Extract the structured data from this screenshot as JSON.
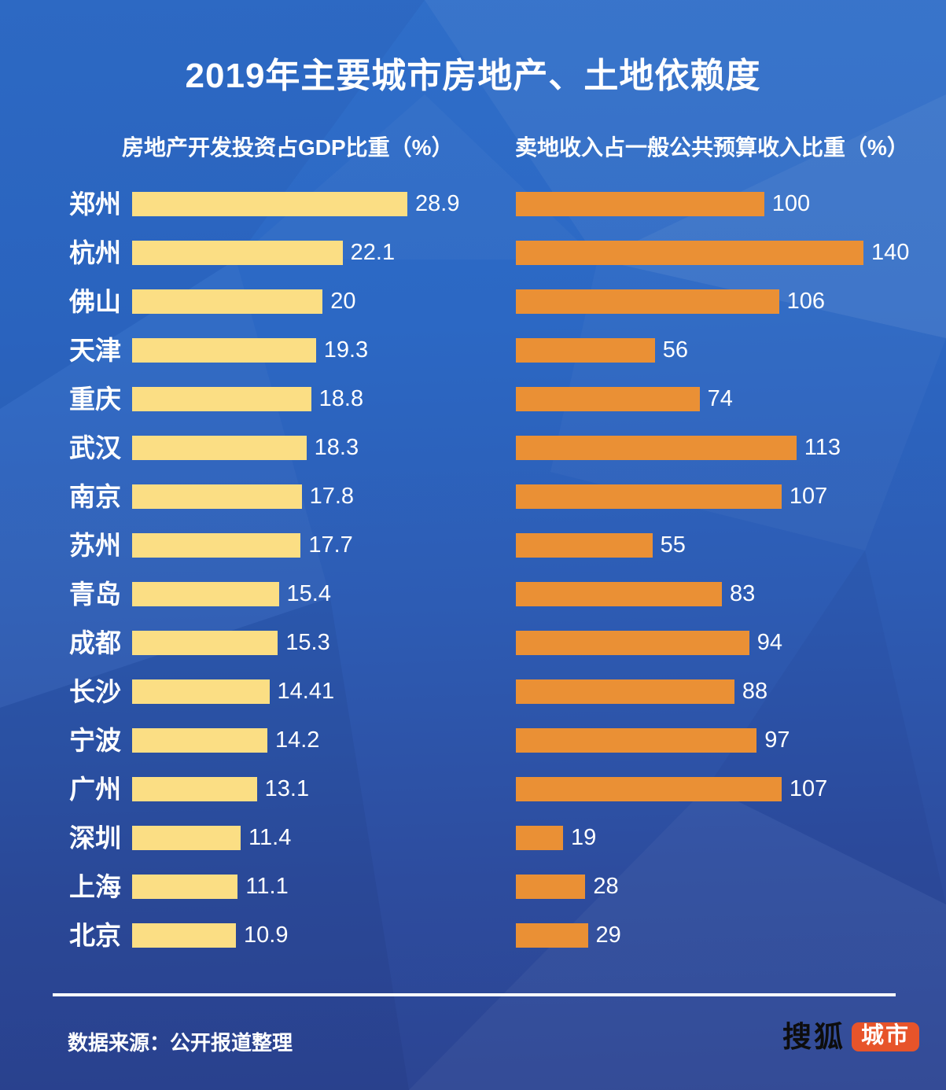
{
  "title": "2019年主要城市房地产、土地依赖度",
  "chart_data": {
    "type": "bar",
    "orientation": "horizontal",
    "grid": false,
    "legend_position": "column-headers",
    "categories": [
      "郑州",
      "杭州",
      "佛山",
      "天津",
      "重庆",
      "武汉",
      "南京",
      "苏州",
      "青岛",
      "成都",
      "长沙",
      "宁波",
      "广州",
      "深圳",
      "上海",
      "北京"
    ],
    "series": [
      {
        "name": "房地产开发投资占GDP比重（%）",
        "values": [
          28.9,
          22.1,
          20,
          19.3,
          18.8,
          18.3,
          17.8,
          17.7,
          15.4,
          15.3,
          14.41,
          14.2,
          13.1,
          11.4,
          11.1,
          10.9
        ],
        "color": "#fbde84",
        "axis_max": 28.9
      },
      {
        "name": "卖地收入占一般公共预算收入比重（%）",
        "values": [
          100,
          140,
          106,
          56,
          74,
          113,
          107,
          55,
          83,
          94,
          88,
          97,
          107,
          19,
          28,
          29
        ],
        "color": "#ea9035",
        "axis_max": 140
      }
    ]
  },
  "footer": {
    "source": "数据来源：公开报道整理",
    "logo": {
      "brand": "搜狐",
      "badge": "城市",
      "badge_color": "#e7542a"
    }
  },
  "colors": {
    "background_top": "#2f6ec9",
    "background_bottom": "#2c4492",
    "text": "#ffffff",
    "divider": "#ffffff"
  }
}
